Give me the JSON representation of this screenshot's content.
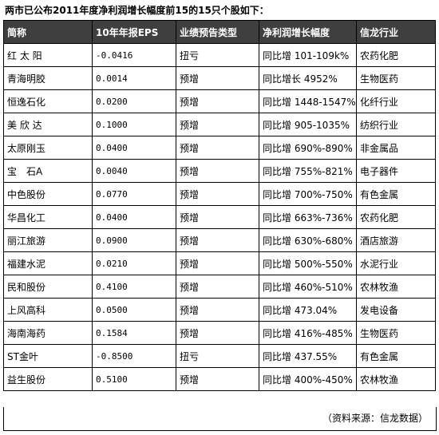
{
  "title": "两市已公布2011年度净利润增长幅度前15的15只个股如下：",
  "headers": [
    "简称",
    "10年年报EPS",
    "业绩预告类型",
    "净利润增长幅度",
    "信龙行业"
  ],
  "rows": [
    [
      "红 太 阳",
      "-0.0416",
      "扭亏",
      "同比增 101-109k%",
      "农药化肥"
    ],
    [
      "青海明胶",
      "0.0014",
      "预增",
      "同比增长 4952%",
      "生物医药"
    ],
    [
      "恒逸石化",
      "0.0200",
      "预增",
      "同比增 1448-1547%",
      "化纤行业"
    ],
    [
      "美 欣 达",
      "0.1000",
      "预增",
      "同比增 905-1035%",
      "纺织行业"
    ],
    [
      "太原刚玉",
      "0.0400",
      "预增",
      "同比增 690%-890%",
      "非金属品"
    ],
    [
      "宝　石A",
      "0.0040",
      "预增",
      "同比增 755%-821%",
      "电子器件"
    ],
    [
      "中色股份",
      "0.0770",
      "预增",
      "同比增 700%-750%",
      "有色金属"
    ],
    [
      "华昌化工",
      "0.0400",
      "预增",
      "同比增 663%-736%",
      "农药化肥"
    ],
    [
      "丽江旅游",
      "0.0900",
      "预增",
      "同比增 630%-680%",
      "酒店旅游"
    ],
    [
      "福建水泥",
      "0.0210",
      "预增",
      "同比增 500%-550%",
      "水泥行业"
    ],
    [
      "民和股份",
      "0.4100",
      "预增",
      "同比增 460%-510%",
      "农林牧渔"
    ],
    [
      "上风高科",
      "0.0500",
      "预增",
      "同比增 473.04%",
      "发电设备"
    ],
    [
      "海南海药",
      "0.1584",
      "预增",
      "同比增 416%-485%",
      "生物医药"
    ],
    [
      "ST金叶",
      "-0.8500",
      "扭亏",
      "同比增 437.55%",
      "有色金属"
    ],
    [
      "益生股份",
      "0.5100",
      "预增",
      "同比增 400%-450%",
      "农林牧渔"
    ]
  ],
  "source": "（资料来源：信龙数据）"
}
